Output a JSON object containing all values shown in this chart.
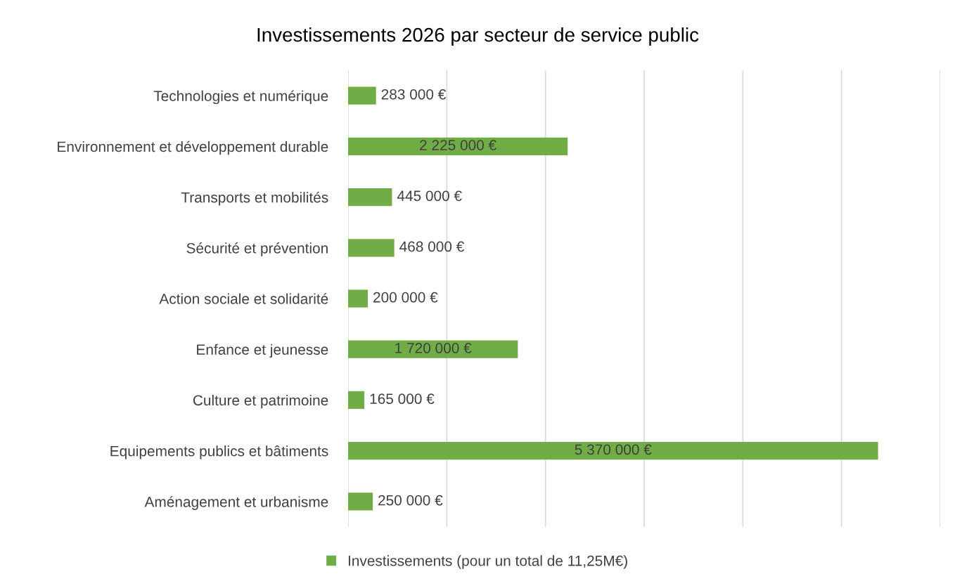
{
  "chart_data": {
    "type": "bar",
    "orientation": "horizontal",
    "title": "Investissements 2026 par secteur de service public",
    "categories": [
      "Technologies et numérique",
      "Environnement et développement durable",
      "Transports et mobilités",
      "Sécurité et prévention",
      "Action sociale et solidarité",
      "Enfance et jeunesse",
      "Culture et patrimoine",
      "Equipements publics et bâtiments",
      "Aménagement et urbanisme"
    ],
    "series": [
      {
        "name": "Investissements (pour un total de 11,25M€)",
        "color": "#70ad47",
        "values": [
          283000,
          2225000,
          445000,
          468000,
          200000,
          1720000,
          165000,
          5370000,
          250000
        ],
        "value_labels": [
          "283 000 €",
          "2 225 000 €",
          "445 000 €",
          "468 000 €",
          "200 000 €",
          "1 720 000 €",
          "165 000 €",
          "5 370 000 €",
          "250 000 €"
        ]
      }
    ],
    "xlim": [
      0,
      6000000
    ],
    "xticks": [
      {
        "value": 0,
        "label": null
      },
      {
        "value": 1000000,
        "label": null
      },
      {
        "value": 2000000,
        "label": null
      },
      {
        "value": 3000000,
        "label": null
      },
      {
        "value": 4000000,
        "label": null
      },
      {
        "value": 5000000,
        "label": null
      },
      {
        "value": 6000000,
        "label": null
      }
    ],
    "grid": "x",
    "legend": "bottom"
  }
}
